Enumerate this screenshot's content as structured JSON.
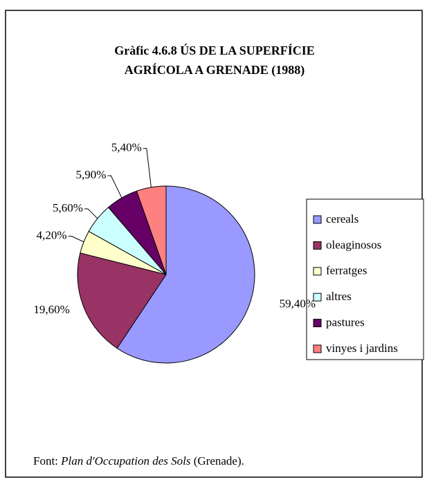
{
  "chart_data": {
    "type": "pie",
    "title": [
      "Gràfic 4.6.8 ÚS DE LA SUPERFÍCIE",
      "AGRÍCOLA A GRENADE (1988)"
    ],
    "categories": [
      "cereals",
      "oleaginosos",
      "ferratges",
      "altres",
      "pastures",
      "vinyes i jardins"
    ],
    "values": [
      59.4,
      19.6,
      4.2,
      5.6,
      5.9,
      5.4
    ],
    "value_labels": [
      "59,40%",
      "19,60%",
      "4,20%",
      "5,60%",
      "5,90%",
      "5,40%"
    ],
    "colors": [
      "#9999ff",
      "#993366",
      "#ffffcc",
      "#ccffff",
      "#660066",
      "#ff8080"
    ],
    "legend": "right",
    "source": {
      "prefix": "Font: ",
      "title": "Plan d'Occupation des Sols",
      "suffix": " (Grenade)."
    }
  }
}
